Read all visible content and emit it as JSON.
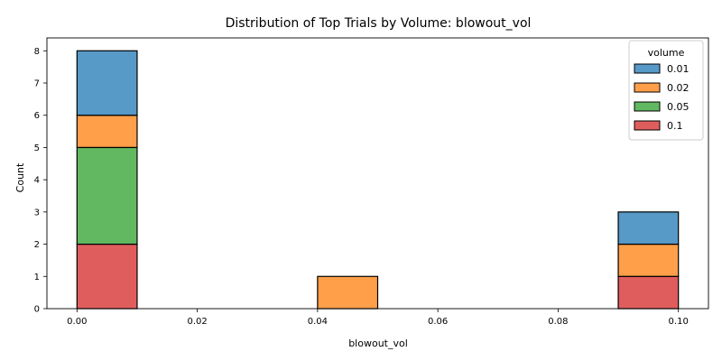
{
  "chart_data": {
    "type": "bar",
    "stacked": true,
    "title": "Distribution of Top Trials by Volume: blowout_vol",
    "xlabel": "blowout_vol",
    "ylabel": "Count",
    "xlim": [
      -0.005,
      0.105
    ],
    "ylim": [
      0,
      8.4
    ],
    "xticks": [
      0.0,
      0.02,
      0.04,
      0.06,
      0.08,
      0.1
    ],
    "xtick_labels": [
      "0.00",
      "0.02",
      "0.04",
      "0.06",
      "0.08",
      "0.10"
    ],
    "yticks": [
      0,
      1,
      2,
      3,
      4,
      5,
      6,
      7,
      8
    ],
    "ytick_labels": [
      "0",
      "1",
      "2",
      "3",
      "4",
      "5",
      "6",
      "7",
      "8"
    ],
    "bins": [
      [
        0.0,
        0.01
      ],
      [
        0.01,
        0.02
      ],
      [
        0.02,
        0.03
      ],
      [
        0.03,
        0.04
      ],
      [
        0.04,
        0.05
      ],
      [
        0.05,
        0.06
      ],
      [
        0.06,
        0.07
      ],
      [
        0.07,
        0.08
      ],
      [
        0.08,
        0.09
      ],
      [
        0.09,
        0.1
      ]
    ],
    "legend_title": "volume",
    "legend_position": "top-right",
    "grid": false,
    "series": [
      {
        "name": "0.1",
        "color": "#d62728",
        "values": [
          2,
          0,
          0,
          0,
          0,
          0,
          0,
          0,
          0,
          1
        ]
      },
      {
        "name": "0.05",
        "color": "#2ca02c",
        "values": [
          3,
          0,
          0,
          0,
          0,
          0,
          0,
          0,
          0,
          0
        ]
      },
      {
        "name": "0.02",
        "color": "#ff7f0e",
        "values": [
          1,
          0,
          0,
          0,
          1,
          0,
          0,
          0,
          0,
          1
        ]
      },
      {
        "name": "0.01",
        "color": "#1f77b4",
        "values": [
          2,
          0,
          0,
          0,
          0,
          0,
          0,
          0,
          0,
          1
        ]
      }
    ],
    "legend_order": [
      "0.01",
      "0.02",
      "0.05",
      "0.1"
    ]
  }
}
